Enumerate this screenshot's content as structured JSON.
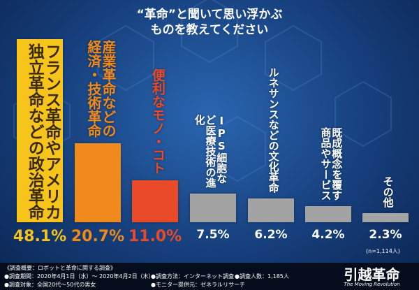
{
  "chart_data": {
    "type": "bar",
    "title": "“革命”と聞いて思い浮かぶ",
    "subtitle": "ものを教えてください",
    "categories": [
      "フランス革命やアメリカ独立革命などの政治革命",
      "産業革命などの経済・技術革命",
      "便利なモノ・コト",
      "IPS細胞など医療技術の進化",
      "ルネサンスなどの文化革命",
      "既成概念を覆す商品やサービス",
      "その他"
    ],
    "values": [
      48.1,
      20.7,
      11.0,
      7.5,
      6.2,
      4.2,
      2.3
    ],
    "value_labels": [
      "48.1%",
      "20.7%",
      "11.0%",
      "7.5%",
      "6.2%",
      "4.2%",
      "2.3%"
    ],
    "colors": [
      "#f6c41a",
      "#f08a1c",
      "#e84a2a",
      "#a3a3a3",
      "#a3a3a3",
      "#a3a3a3",
      "#a3a3a3"
    ],
    "label_colors": [
      "#3a2a05",
      "#f08a1c",
      "#e84a2a",
      "#ffffff",
      "#ffffff",
      "#ffffff",
      "#ffffff"
    ],
    "value_label_colors": [
      "#f6c41a",
      "#f08a1c",
      "#e84a2a",
      "#ffffff",
      "#ffffff",
      "#ffffff",
      "#ffffff"
    ],
    "note": "(n=1,114人)"
  },
  "footer": {
    "heading": "《調査概要：ロボットと革命に関する調査》",
    "items": [
      "●調査期間：2020年4月1日（水）～ 2020年4月2日（木）",
      "●調査方法：インターネット調査",
      "●調査人数：1,185人",
      "●調査対象：全国20代〜50代の男女",
      "●モニター提供元：ゼネラルリサーチ"
    ],
    "logo": "引越革命",
    "logo_sub": "The Moving Revolution"
  }
}
